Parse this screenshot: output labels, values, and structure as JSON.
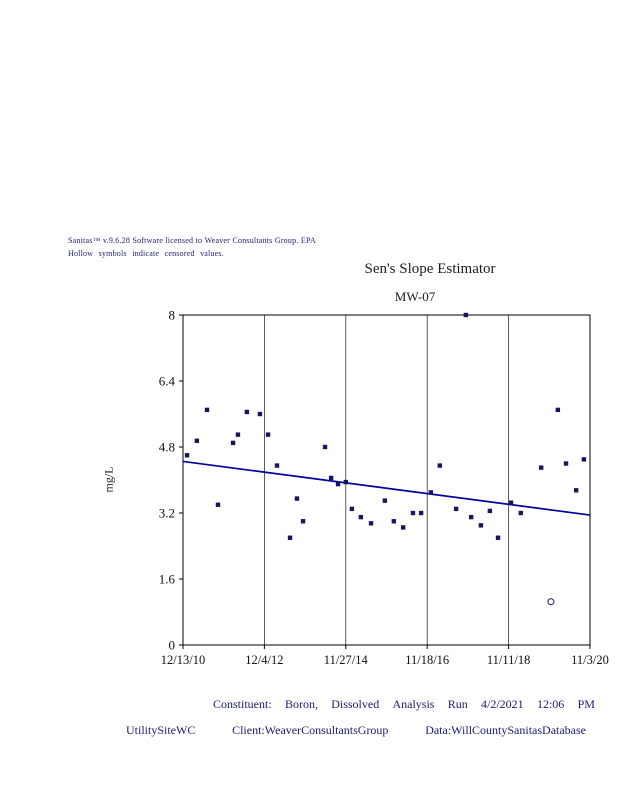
{
  "header": {
    "line1_words": [
      "Sanitas™",
      "v.9.6.28",
      "Software",
      "licensed",
      "to",
      "Weaver",
      "Consultants",
      "Group.",
      "EPA"
    ],
    "line2_words": [
      "Hollow",
      "symbols",
      "indicate",
      "censored",
      "values."
    ]
  },
  "chart_data": {
    "type": "scatter",
    "title": "Sen's Slope Estimator",
    "subtitle": "MW-07",
    "ylabel": "mg/L",
    "ylim": [
      0,
      8
    ],
    "yticks": [
      0,
      1.6,
      3.2,
      4.8,
      6.4,
      8
    ],
    "xticks": [
      "12/13/10",
      "12/4/12",
      "11/27/14",
      "11/18/16",
      "11/11/18",
      "11/3/20"
    ],
    "grid": "vertical-only",
    "legend": "none",
    "note": "x is fraction of distance along the date axis from 12/13/10 to 11/3/20; hollow (censored) symbols drawn as open circles",
    "points": [
      {
        "x": 0.01,
        "y": 4.6
      },
      {
        "x": 0.034,
        "y": 4.95
      },
      {
        "x": 0.059,
        "y": 5.7
      },
      {
        "x": 0.086,
        "y": 3.4
      },
      {
        "x": 0.123,
        "y": 4.9
      },
      {
        "x": 0.135,
        "y": 5.1
      },
      {
        "x": 0.157,
        "y": 5.65
      },
      {
        "x": 0.189,
        "y": 5.6
      },
      {
        "x": 0.209,
        "y": 5.1
      },
      {
        "x": 0.231,
        "y": 4.35
      },
      {
        "x": 0.263,
        "y": 2.6
      },
      {
        "x": 0.28,
        "y": 3.55
      },
      {
        "x": 0.295,
        "y": 3.0
      },
      {
        "x": 0.349,
        "y": 4.8
      },
      {
        "x": 0.364,
        "y": 4.05
      },
      {
        "x": 0.381,
        "y": 3.9
      },
      {
        "x": 0.4,
        "y": 3.95
      },
      {
        "x": 0.415,
        "y": 3.3
      },
      {
        "x": 0.437,
        "y": 3.1
      },
      {
        "x": 0.462,
        "y": 2.95
      },
      {
        "x": 0.496,
        "y": 3.5
      },
      {
        "x": 0.518,
        "y": 3.0
      },
      {
        "x": 0.541,
        "y": 2.85
      },
      {
        "x": 0.565,
        "y": 3.2
      },
      {
        "x": 0.585,
        "y": 3.2
      },
      {
        "x": 0.609,
        "y": 3.7
      },
      {
        "x": 0.631,
        "y": 4.35
      },
      {
        "x": 0.671,
        "y": 3.3
      },
      {
        "x": 0.695,
        "y": 8.0
      },
      {
        "x": 0.708,
        "y": 3.1
      },
      {
        "x": 0.732,
        "y": 2.9
      },
      {
        "x": 0.754,
        "y": 3.25
      },
      {
        "x": 0.774,
        "y": 2.6
      },
      {
        "x": 0.806,
        "y": 3.45
      },
      {
        "x": 0.83,
        "y": 3.2
      },
      {
        "x": 0.88,
        "y": 4.3
      },
      {
        "x": 0.904,
        "y": 1.05,
        "censored": true
      },
      {
        "x": 0.921,
        "y": 5.7
      },
      {
        "x": 0.941,
        "y": 4.4
      },
      {
        "x": 0.966,
        "y": 3.75
      },
      {
        "x": 0.985,
        "y": 4.5
      }
    ],
    "trend_line": {
      "label": "Sen's slope estimate",
      "x1": 0,
      "y1": 4.45,
      "x2": 1,
      "y2": 3.15
    },
    "colors": {
      "point": "#16165d",
      "line": "#0000a0",
      "axis": "#000000",
      "grid": "#333333"
    }
  },
  "footer": {
    "line1_words": [
      "Constituent:",
      "Boron,",
      "Dissolved",
      "Analysis",
      "Run",
      "4/2/2021",
      "12:06",
      "PM"
    ],
    "line2_segments": [
      "UtilitySiteWC",
      "Client:WeaverConsultantsGroup",
      "Data:WillCountySanitasDatabase"
    ]
  }
}
